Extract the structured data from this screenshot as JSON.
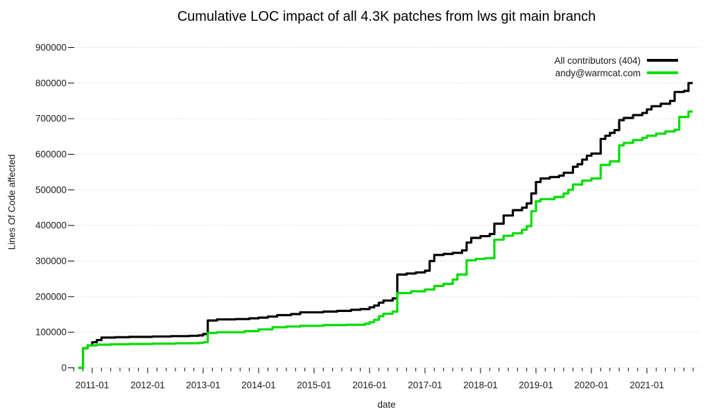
{
  "chart_data": {
    "type": "line",
    "step_mode": "step-after",
    "title": "Cumulative LOC impact of all 4.3K patches from lws git main branch",
    "xlabel": "date",
    "ylabel": "Lines Of Code affected",
    "x_range": [
      "2010-09",
      "2021-12"
    ],
    "ylim": [
      0,
      900000
    ],
    "y_ticks": [
      0,
      100000,
      200000,
      300000,
      400000,
      500000,
      600000,
      700000,
      800000,
      900000
    ],
    "x_major_ticks": [
      "2011-01",
      "2012-01",
      "2013-01",
      "2014-01",
      "2015-01",
      "2016-01",
      "2017-01",
      "2018-01",
      "2019-01",
      "2020-01",
      "2021-01"
    ],
    "minor_tick_interval_months": 2,
    "grid": "horizontal-dotted",
    "legend_position": "top-right",
    "colors": {
      "background": "#ffffff",
      "text": "#1a1a1a",
      "grid": "#bdbdbd"
    },
    "series": [
      {
        "name": "All contributors (404)",
        "color": "#000000",
        "points": [
          [
            "2010-10",
            0
          ],
          [
            "2010-11",
            55000
          ],
          [
            "2010-12",
            63000
          ],
          [
            "2011-01",
            72000
          ],
          [
            "2011-02",
            78000
          ],
          [
            "2011-03",
            85000
          ],
          [
            "2011-06",
            86000
          ],
          [
            "2011-09",
            87000
          ],
          [
            "2012-02",
            88000
          ],
          [
            "2012-06",
            89000
          ],
          [
            "2012-10",
            90000
          ],
          [
            "2012-12",
            91000
          ],
          [
            "2013-01",
            95000
          ],
          [
            "2013-02",
            133000
          ],
          [
            "2013-04",
            136000
          ],
          [
            "2013-08",
            137000
          ],
          [
            "2013-11",
            139000
          ],
          [
            "2014-01",
            141000
          ],
          [
            "2014-03",
            144000
          ],
          [
            "2014-05",
            148000
          ],
          [
            "2014-08",
            151000
          ],
          [
            "2014-10",
            156000
          ],
          [
            "2015-03",
            158000
          ],
          [
            "2015-06",
            160000
          ],
          [
            "2015-09",
            163000
          ],
          [
            "2015-11",
            165000
          ],
          [
            "2016-01",
            170000
          ],
          [
            "2016-02",
            175000
          ],
          [
            "2016-03",
            183000
          ],
          [
            "2016-04",
            189000
          ],
          [
            "2016-06",
            195000
          ],
          [
            "2016-07",
            262000
          ],
          [
            "2016-09",
            265000
          ],
          [
            "2016-11",
            268000
          ],
          [
            "2017-01",
            273000
          ],
          [
            "2017-02",
            300000
          ],
          [
            "2017-03",
            317000
          ],
          [
            "2017-05",
            320000
          ],
          [
            "2017-07",
            323000
          ],
          [
            "2017-09",
            330000
          ],
          [
            "2017-10",
            352000
          ],
          [
            "2017-11",
            365000
          ],
          [
            "2018-01",
            370000
          ],
          [
            "2018-03",
            376000
          ],
          [
            "2018-04",
            405000
          ],
          [
            "2018-06",
            428000
          ],
          [
            "2018-08",
            443000
          ],
          [
            "2018-10",
            450000
          ],
          [
            "2018-11",
            462000
          ],
          [
            "2018-12",
            490000
          ],
          [
            "2019-01",
            522000
          ],
          [
            "2019-02",
            532000
          ],
          [
            "2019-04",
            536000
          ],
          [
            "2019-06",
            540000
          ],
          [
            "2019-07",
            548000
          ],
          [
            "2019-09",
            565000
          ],
          [
            "2019-10",
            572000
          ],
          [
            "2019-11",
            585000
          ],
          [
            "2019-12",
            596000
          ],
          [
            "2020-01",
            602000
          ],
          [
            "2020-03",
            643000
          ],
          [
            "2020-04",
            652000
          ],
          [
            "2020-05",
            660000
          ],
          [
            "2020-06",
            668000
          ],
          [
            "2020-07",
            696000
          ],
          [
            "2020-08",
            702000
          ],
          [
            "2020-10",
            710000
          ],
          [
            "2020-12",
            716000
          ],
          [
            "2021-01",
            726000
          ],
          [
            "2021-02",
            735000
          ],
          [
            "2021-04",
            742000
          ],
          [
            "2021-06",
            750000
          ],
          [
            "2021-07",
            775000
          ],
          [
            "2021-09",
            778000
          ],
          [
            "2021-10",
            800000
          ]
        ]
      },
      {
        "name": "andy@warmcat.com",
        "color": "#00dc00",
        "points": [
          [
            "2010-10",
            0
          ],
          [
            "2010-11",
            55000
          ],
          [
            "2010-12",
            63000
          ],
          [
            "2011-02",
            65000
          ],
          [
            "2011-05",
            66000
          ],
          [
            "2011-09",
            67000
          ],
          [
            "2012-02",
            68000
          ],
          [
            "2012-07",
            69000
          ],
          [
            "2012-12",
            70000
          ],
          [
            "2013-01",
            72000
          ],
          [
            "2013-02",
            98000
          ],
          [
            "2013-04",
            100000
          ],
          [
            "2013-10",
            103000
          ],
          [
            "2014-01",
            108000
          ],
          [
            "2014-04",
            114000
          ],
          [
            "2014-07",
            116000
          ],
          [
            "2014-10",
            118000
          ],
          [
            "2015-03",
            120000
          ],
          [
            "2015-08",
            121000
          ],
          [
            "2015-12",
            124000
          ],
          [
            "2016-01",
            128000
          ],
          [
            "2016-02",
            135000
          ],
          [
            "2016-03",
            145000
          ],
          [
            "2016-04",
            152000
          ],
          [
            "2016-06",
            158000
          ],
          [
            "2016-07",
            210000
          ],
          [
            "2016-10",
            215000
          ],
          [
            "2017-01",
            220000
          ],
          [
            "2017-03",
            230000
          ],
          [
            "2017-05",
            236000
          ],
          [
            "2017-07",
            248000
          ],
          [
            "2017-08",
            262000
          ],
          [
            "2017-10",
            302000
          ],
          [
            "2017-12",
            306000
          ],
          [
            "2018-02",
            308000
          ],
          [
            "2018-04",
            360000
          ],
          [
            "2018-06",
            371000
          ],
          [
            "2018-08",
            378000
          ],
          [
            "2018-10",
            388000
          ],
          [
            "2018-11",
            398000
          ],
          [
            "2018-12",
            440000
          ],
          [
            "2019-01",
            468000
          ],
          [
            "2019-02",
            474000
          ],
          [
            "2019-05",
            480000
          ],
          [
            "2019-07",
            490000
          ],
          [
            "2019-08",
            500000
          ],
          [
            "2019-09",
            515000
          ],
          [
            "2019-11",
            526000
          ],
          [
            "2020-01",
            532000
          ],
          [
            "2020-03",
            570000
          ],
          [
            "2020-05",
            580000
          ],
          [
            "2020-07",
            625000
          ],
          [
            "2020-08",
            632000
          ],
          [
            "2020-10",
            640000
          ],
          [
            "2020-12",
            646000
          ],
          [
            "2021-01",
            652000
          ],
          [
            "2021-03",
            658000
          ],
          [
            "2021-05",
            664000
          ],
          [
            "2021-07",
            669000
          ],
          [
            "2021-08",
            705000
          ],
          [
            "2021-10",
            720000
          ]
        ]
      }
    ]
  }
}
